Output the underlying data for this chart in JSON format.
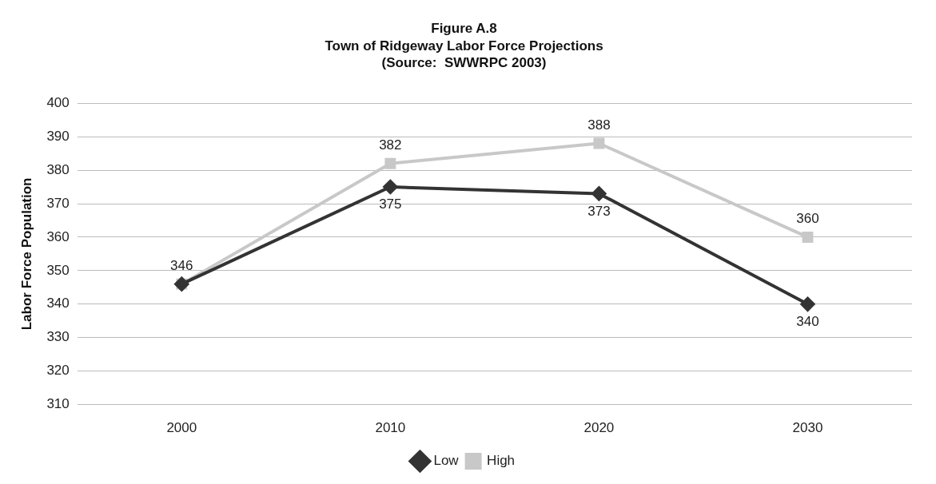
{
  "chart_data": {
    "type": "line",
    "title": "Figure A.8",
    "subtitle": "Town of Ridgeway Labor Force Projections",
    "annotations": [
      "(Source:  SWWRPC 2003)"
    ],
    "ylabel": "Labor Force Population",
    "categories": [
      "2000",
      "2010",
      "2020",
      "2030"
    ],
    "series": [
      {
        "name": "Low",
        "color": "#333333",
        "marker": "diamond",
        "values": [
          346,
          375,
          373,
          340
        ],
        "value_labels": [
          null,
          "375",
          "373",
          "340"
        ]
      },
      {
        "name": "High",
        "color": "#c8c8c8",
        "marker": "square",
        "values": [
          346,
          382,
          388,
          360
        ],
        "value_labels": [
          "346",
          "382",
          "388",
          "360"
        ]
      }
    ],
    "ylim": [
      310,
      400
    ],
    "yticks": [
      310,
      320,
      330,
      340,
      350,
      360,
      370,
      380,
      390,
      400
    ],
    "grid": "y",
    "legend": "bottom",
    "line_style": "solid"
  }
}
